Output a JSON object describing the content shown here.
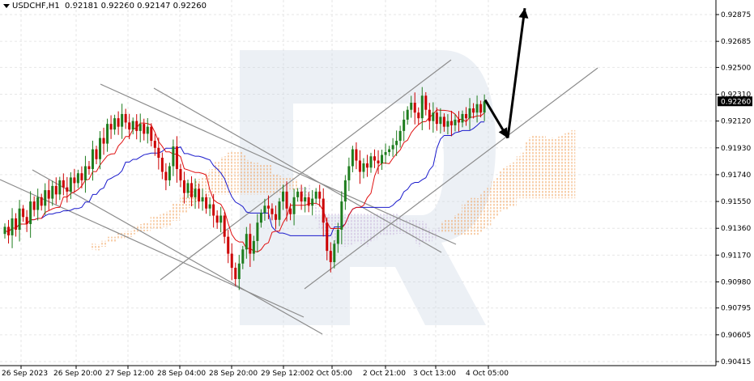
{
  "header": {
    "symbol": "USDCHF,H1",
    "ohlc": "0.92181 0.92260 0.92147 0.92260"
  },
  "chart_data": {
    "type": "candlestick",
    "symbol": "USDCHF",
    "timeframe": "H1",
    "ohlc": {
      "open": 0.92181,
      "high": 0.9226,
      "low": 0.92147,
      "close": 0.9226
    },
    "current_price": "0.92260",
    "ylim": [
      0.90415,
      0.92875
    ],
    "y_ticks": [
      "0.92875",
      "0.92685",
      "0.92500",
      "0.92310",
      "0.92120",
      "0.91930",
      "0.91740",
      "0.91550",
      "0.91360",
      "0.91170",
      "0.90980",
      "0.90795",
      "0.90605",
      "0.90415"
    ],
    "x_ticks": [
      "26 Sep 2023",
      "26 Sep 20:00",
      "27 Sep 12:00",
      "28 Sep 04:00",
      "28 Sep 20:00",
      "29 Sep 12:00",
      "2 Oct 05:00",
      "2 Oct 21:00",
      "3 Oct 13:00",
      "4 Oct 05:00"
    ],
    "indicators": [
      "Ichimoku Kinko Hyo: Tenkan-sen (red), Kijun-sen (blue), Kumo cloud (orange/violet hatch)"
    ],
    "closes": [
      0.9137,
      0.9131,
      0.9143,
      0.9135,
      0.915,
      0.9144,
      0.9139,
      0.9155,
      0.9149,
      0.9158,
      0.9152,
      0.9163,
      0.9157,
      0.9166,
      0.916,
      0.917,
      0.9165,
      0.9162,
      0.9172,
      0.9168,
      0.9175,
      0.917,
      0.918,
      0.9178,
      0.9192,
      0.9185,
      0.92,
      0.9196,
      0.921,
      0.9206,
      0.9214,
      0.9208,
      0.9217,
      0.9211,
      0.9206,
      0.9212,
      0.9205,
      0.921,
      0.9203,
      0.9208,
      0.9198,
      0.9193,
      0.9186,
      0.9176,
      0.917,
      0.918,
      0.9194,
      0.9178,
      0.917,
      0.9161,
      0.9168,
      0.9158,
      0.9164,
      0.9155,
      0.9158,
      0.915,
      0.9153,
      0.9145,
      0.914,
      0.9145,
      0.913,
      0.9118,
      0.9108,
      0.91,
      0.9111,
      0.9121,
      0.9132,
      0.9118,
      0.9127,
      0.914,
      0.9147,
      0.9152,
      0.915,
      0.9146,
      0.9142,
      0.9155,
      0.9162,
      0.915,
      0.9146,
      0.9158,
      0.9162,
      0.9155,
      0.9158,
      0.9152,
      0.9157,
      0.9162,
      0.9157,
      0.914,
      0.912,
      0.9112,
      0.9125,
      0.9135,
      0.9155,
      0.917,
      0.918,
      0.9192,
      0.9184,
      0.9176,
      0.9182,
      0.9179,
      0.9187,
      0.9184,
      0.9182,
      0.9188,
      0.919,
      0.9192,
      0.9195,
      0.9198,
      0.9205,
      0.9213,
      0.922,
      0.9225,
      0.9218,
      0.9214,
      0.923,
      0.922,
      0.9212,
      0.9218,
      0.921,
      0.9215,
      0.9208,
      0.9212,
      0.9209,
      0.9213,
      0.9211,
      0.9217,
      0.9214,
      0.9221,
      0.9218,
      0.9224,
      0.9218,
      0.9226
    ],
    "forecast_arrows": [
      {
        "from_index": 128,
        "from_price": 0.9227,
        "to_index": 132,
        "to_price": 0.92
      },
      {
        "from_index": 132,
        "from_price": 0.92,
        "to_index": 135,
        "to_price": 0.9292
      }
    ]
  }
}
